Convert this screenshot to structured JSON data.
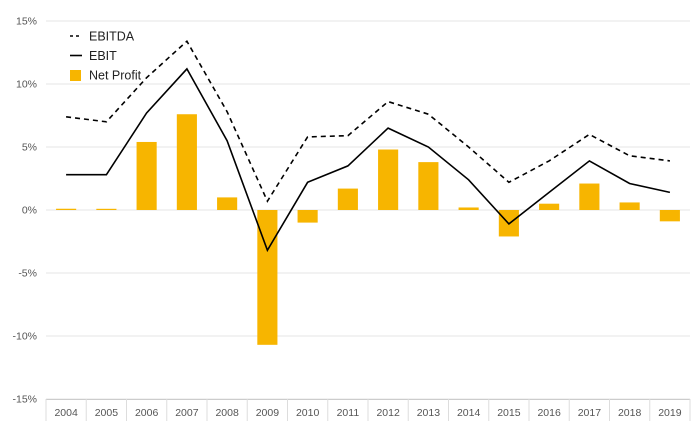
{
  "chart_data": {
    "type": "bar",
    "categories": [
      "2004",
      "2005",
      "2006",
      "2007",
      "2008",
      "2009",
      "2010",
      "2011",
      "2012",
      "2013",
      "2014",
      "2015",
      "2016",
      "2017",
      "2018",
      "2019"
    ],
    "series": [
      {
        "name": "EBITDA",
        "kind": "line",
        "style": "dashed",
        "color": "#000000",
        "values": [
          7.4,
          7.0,
          10.5,
          13.4,
          7.8,
          0.7,
          5.8,
          5.9,
          8.6,
          7.6,
          5.0,
          2.2,
          3.9,
          6.0,
          4.3,
          3.9
        ]
      },
      {
        "name": "EBIT",
        "kind": "line",
        "style": "solid",
        "color": "#000000",
        "values": [
          2.8,
          2.8,
          7.7,
          11.2,
          5.5,
          -3.2,
          2.2,
          3.5,
          6.5,
          5.0,
          2.4,
          -1.1,
          1.4,
          3.9,
          2.1,
          1.4
        ]
      },
      {
        "name": "Net Profit",
        "kind": "bar",
        "color": "#F7B500",
        "values": [
          0.1,
          0.0,
          5.4,
          7.6,
          1.0,
          -10.7,
          -1.0,
          1.7,
          4.8,
          3.8,
          0.2,
          -2.1,
          0.5,
          2.1,
          0.6,
          -0.9
        ]
      }
    ],
    "yticks": [
      "15%",
      "10%",
      "5%",
      "0%",
      "-5%",
      "-10%",
      "-15%"
    ],
    "ylim": [
      -15,
      15
    ],
    "ystep": 5,
    "grid": true,
    "legend_position": "top-left",
    "title": "",
    "xlabel": "",
    "ylabel": ""
  }
}
